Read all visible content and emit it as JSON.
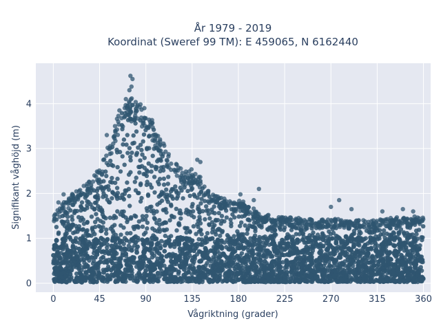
{
  "chart_data": {
    "type": "scatter",
    "title_line1": "År 1979 - 2019",
    "title_line2": "Koordinat (Sweref 99 TM): E 459065, N 6162440",
    "xlabel": "Vågriktning (grader)",
    "ylabel": "Signifikant våghöjd (m)",
    "xlim": [
      -17,
      367
    ],
    "ylim": [
      -0.2,
      4.9
    ],
    "xticks": [
      0,
      45,
      90,
      135,
      180,
      225,
      270,
      315,
      360
    ],
    "yticks": [
      0,
      1,
      2,
      3,
      4
    ],
    "grid": true,
    "marker_color": "#2f5570",
    "background": "#e5e8f1",
    "series": [
      {
        "x": [
          0,
          5,
          10,
          15,
          20,
          25,
          30,
          35,
          40,
          45,
          50,
          55,
          60,
          65,
          70,
          75,
          80,
          85,
          90,
          95,
          100,
          105,
          110,
          115,
          120,
          125,
          130,
          135,
          140,
          145,
          150,
          155,
          160,
          165,
          170,
          175,
          180,
          185,
          190,
          195,
          200,
          205,
          210,
          215,
          220,
          225,
          230,
          235,
          240,
          245,
          250,
          255,
          260,
          265,
          270,
          275,
          280,
          285,
          290,
          295,
          300,
          305,
          310,
          315,
          320,
          325,
          330,
          335,
          340,
          345,
          350,
          355,
          360
        ],
        "y_max": [
          1.45,
          1.6,
          1.75,
          1.85,
          1.95,
          2.05,
          2.1,
          2.2,
          2.35,
          2.55,
          2.8,
          3.1,
          3.4,
          3.75,
          3.95,
          4.0,
          3.95,
          3.85,
          3.75,
          3.55,
          3.35,
          3.1,
          2.85,
          2.7,
          2.55,
          2.45,
          2.4,
          2.5,
          2.4,
          2.2,
          2.0,
          1.95,
          1.9,
          1.85,
          1.8,
          1.75,
          1.8,
          1.75,
          1.7,
          1.6,
          1.55,
          1.5,
          1.5,
          1.45,
          1.45,
          1.45,
          1.42,
          1.4,
          1.4,
          1.38,
          1.38,
          1.36,
          1.36,
          1.38,
          1.4,
          1.38,
          1.38,
          1.36,
          1.36,
          1.35,
          1.35,
          1.35,
          1.34,
          1.36,
          1.38,
          1.4,
          1.4,
          1.42,
          1.42,
          1.45,
          1.45,
          1.45,
          1.4
        ],
        "outliers": [
          [
            75,
            4.62
          ],
          [
            77,
            4.55
          ],
          [
            76,
            4.38
          ],
          [
            74,
            4.3
          ],
          [
            140,
            2.75
          ],
          [
            143,
            2.7
          ],
          [
            200,
            2.1
          ],
          [
            182,
            1.98
          ],
          [
            195,
            1.85
          ],
          [
            270,
            1.7
          ],
          [
            278,
            1.85
          ],
          [
            290,
            1.65
          ],
          [
            320,
            1.6
          ],
          [
            340,
            1.65
          ],
          [
            350,
            1.6
          ],
          [
            10,
            1.98
          ],
          [
            5,
            1.8
          ],
          [
            25,
            2.05
          ],
          [
            35,
            2.25
          ],
          [
            40,
            2.4
          ],
          [
            52,
            3.3
          ],
          [
            60,
            3.5
          ]
        ]
      }
    ]
  }
}
